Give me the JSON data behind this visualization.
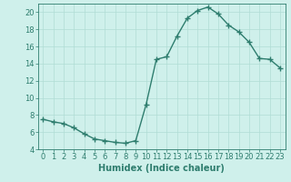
{
  "x": [
    0,
    1,
    2,
    3,
    4,
    5,
    6,
    7,
    8,
    9,
    10,
    11,
    12,
    13,
    14,
    15,
    16,
    17,
    18,
    19,
    20,
    21,
    22,
    23
  ],
  "y": [
    7.5,
    7.2,
    7.0,
    6.5,
    5.8,
    5.2,
    5.0,
    4.8,
    4.7,
    5.0,
    9.2,
    14.5,
    14.8,
    17.2,
    19.3,
    20.2,
    20.6,
    19.8,
    18.5,
    17.7,
    16.5,
    14.6,
    14.5,
    13.5
  ],
  "line_color": "#2e7d6e",
  "marker": "+",
  "markersize": 4,
  "markeredgewidth": 1.0,
  "linewidth": 1.0,
  "bg_color": "#cff0eb",
  "grid_color": "#b0ddd5",
  "xlabel": "Humidex (Indice chaleur)",
  "ylim": [
    4,
    21
  ],
  "xlim": [
    -0.5,
    23.5
  ],
  "yticks": [
    4,
    6,
    8,
    10,
    12,
    14,
    16,
    18,
    20
  ],
  "xticks": [
    0,
    1,
    2,
    3,
    4,
    5,
    6,
    7,
    8,
    9,
    10,
    11,
    12,
    13,
    14,
    15,
    16,
    17,
    18,
    19,
    20,
    21,
    22,
    23
  ],
  "tick_color": "#2e7d6e",
  "label_color": "#2e7d6e",
  "xlabel_fontsize": 7,
  "tick_fontsize": 6
}
